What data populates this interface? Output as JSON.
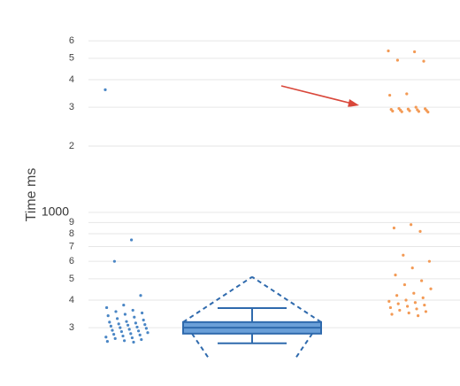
{
  "chart_data": {
    "type": "scatter",
    "ylabel": "Time ms",
    "log_y": true,
    "grid": true,
    "ylim": [
      200,
      8000
    ],
    "yticks": [
      {
        "value": 300,
        "label": "3"
      },
      {
        "value": 400,
        "label": "4"
      },
      {
        "value": 500,
        "label": "5"
      },
      {
        "value": 600,
        "label": "6"
      },
      {
        "value": 700,
        "label": "7"
      },
      {
        "value": 800,
        "label": "8"
      },
      {
        "value": 900,
        "label": "9"
      },
      1000,
      {
        "value": 2000,
        "label": "2"
      },
      {
        "value": 3000,
        "label": "3"
      },
      {
        "value": 4000,
        "label": "4"
      },
      {
        "value": 5000,
        "label": "5"
      },
      {
        "value": 6000,
        "label": "6"
      }
    ],
    "series": [
      {
        "color": "#4a86c5",
        "values": [
          3600,
          750,
          600,
          420,
          380,
          370,
          360,
          355,
          350,
          345,
          340,
          335,
          330,
          325,
          320,
          318,
          315,
          312,
          310,
          308,
          305,
          302,
          300,
          298,
          295,
          292,
          290,
          288,
          285,
          282,
          280,
          278,
          275,
          272,
          270,
          268,
          265,
          262,
          260,
          258
        ]
      },
      {
        "color": "#f39a55",
        "values": [
          5400,
          5350,
          4900,
          4850,
          3450,
          3400,
          3000,
          2960,
          2950,
          2940,
          2930,
          2920,
          2910,
          2900,
          2890,
          2880,
          2870,
          2860,
          2850,
          880,
          850,
          820,
          640,
          600,
          560,
          520,
          490,
          470,
          450,
          430,
          420,
          410,
          400,
          395,
          390,
          385,
          380,
          375,
          370,
          365,
          360,
          355,
          350,
          345,
          340
        ]
      }
    ],
    "box": {
      "color": "#6a9fd8",
      "whisker_low": 255,
      "q1": 282,
      "median": 300,
      "q3": 318,
      "whisker_high": 368,
      "envelope_top": 510,
      "envelope_bottom": 215
    }
  }
}
